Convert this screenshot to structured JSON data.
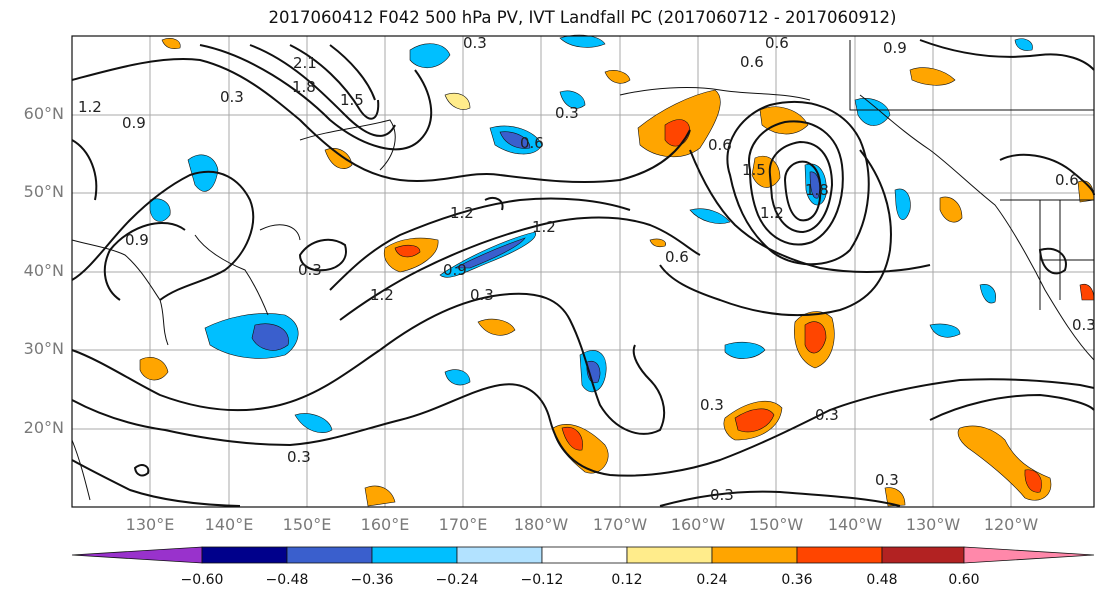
{
  "title": "2017060412 F042 500 hPa PV, IVT Landfall PC (2017060712 - 2017060912)",
  "latitude_labels": [
    "60°N",
    "50°N",
    "40°N",
    "30°N",
    "20°N"
  ],
  "longitude_labels": [
    "130°E",
    "140°E",
    "150°E",
    "160°E",
    "170°E",
    "180°W",
    "170°W",
    "160°W",
    "150°W",
    "140°W",
    "130°W",
    "120°W"
  ],
  "colorbar": {
    "tick_labels": [
      "−0.60",
      "−0.48",
      "−0.36",
      "−0.24",
      "−0.12",
      "0.12",
      "0.24",
      "0.36",
      "0.48",
      "0.60"
    ],
    "colors": [
      "#9932cc",
      "#00008b",
      "#3a5fcd",
      "#00bfff",
      "#b2e2ff",
      "#ffffff",
      "#ffec8b",
      "#ffa500",
      "#ff4500",
      "#b22222",
      "#ff88aa"
    ]
  },
  "contour_labels": [
    "0.3",
    "0.6",
    "0.9",
    "1.2",
    "1.5",
    "1.8",
    "2.1"
  ],
  "legend_levels": [
    -0.6,
    -0.48,
    -0.36,
    -0.24,
    -0.12,
    0.12,
    0.24,
    0.36,
    0.48,
    0.6
  ]
}
